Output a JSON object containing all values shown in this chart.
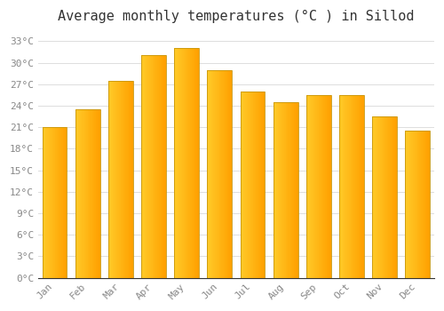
{
  "title": "Average monthly temperatures (°C ) in Sillod",
  "months": [
    "Jan",
    "Feb",
    "Mar",
    "Apr",
    "May",
    "Jun",
    "Jul",
    "Aug",
    "Sep",
    "Oct",
    "Nov",
    "Dec"
  ],
  "values": [
    21.0,
    23.5,
    27.5,
    31.0,
    32.0,
    29.0,
    26.0,
    24.5,
    25.5,
    25.5,
    22.5,
    20.5
  ],
  "bar_color_left": "#FFCA28",
  "bar_color_right": "#FFA000",
  "bar_edge_color": "#C8960C",
  "background_color": "#ffffff",
  "grid_color": "#dddddd",
  "yticks": [
    0,
    3,
    6,
    9,
    12,
    15,
    18,
    21,
    24,
    27,
    30,
    33
  ],
  "ylim": [
    0,
    34.5
  ],
  "title_fontsize": 11,
  "tick_fontsize": 8,
  "tick_label_color": "#888888",
  "bar_width": 0.75
}
